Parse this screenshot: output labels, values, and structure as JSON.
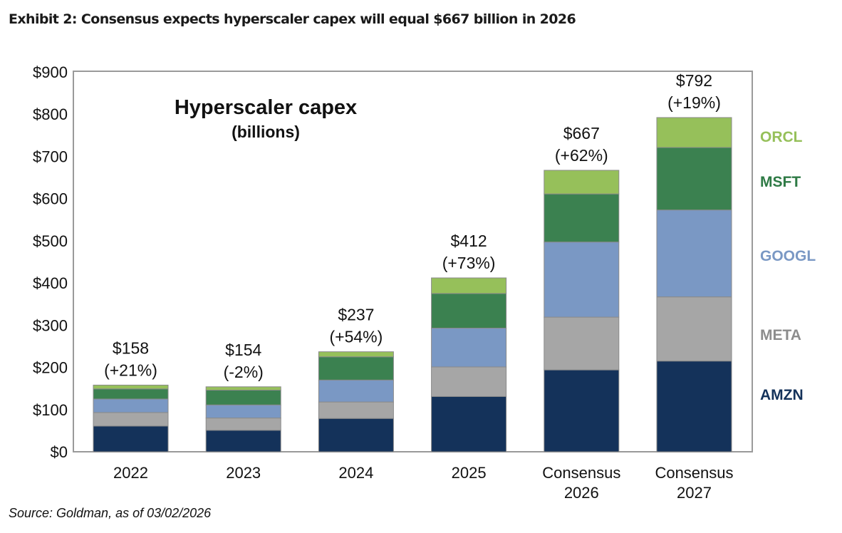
{
  "exhibit_title": "Exhibit 2: Consensus expects hyperscaler capex will equal $667 billion in 2026",
  "source": "Source: Goldman, as of 03/02/2026",
  "chart_data": {
    "type": "bar",
    "stacked": true,
    "title": "Hyperscaler capex",
    "subtitle": "(billions)",
    "xlabel": "",
    "ylabel": "",
    "ylim": [
      0,
      900
    ],
    "y_ticks": [
      0,
      100,
      200,
      300,
      400,
      500,
      600,
      700,
      800,
      900
    ],
    "y_tick_labels": [
      "$0",
      "$100",
      "$200",
      "$300",
      "$400",
      "$500",
      "$600",
      "$700",
      "$800",
      "$900"
    ],
    "grid": false,
    "legend_position": "right",
    "categories": [
      [
        "2022"
      ],
      [
        "2023"
      ],
      [
        "2024"
      ],
      [
        "2025"
      ],
      [
        "Consensus",
        "2026"
      ],
      [
        "Consensus",
        "2027"
      ]
    ],
    "series": [
      {
        "name": "AMZN",
        "color": "#14325a",
        "values": [
          61,
          51,
          79,
          131,
          194,
          215
        ]
      },
      {
        "name": "META",
        "color": "#a6a6a6",
        "values": [
          32,
          29,
          39,
          70,
          125,
          152
        ]
      },
      {
        "name": "GOOGL",
        "color": "#7a98c4",
        "values": [
          32,
          31,
          52,
          92,
          178,
          206
        ]
      },
      {
        "name": "MSFT",
        "color": "#3b8150",
        "values": [
          24,
          35,
          55,
          82,
          114,
          148
        ]
      },
      {
        "name": "ORCL",
        "color": "#96c05a",
        "values": [
          9,
          8,
          12,
          37,
          56,
          71
        ]
      }
    ],
    "totals": [
      158,
      154,
      237,
      412,
      667,
      792
    ],
    "total_labels": [
      "$158",
      "$154",
      "$237",
      "$412",
      "$667",
      "$792"
    ],
    "growth_labels": [
      "(+21%)",
      "(-2%)",
      "(+54%)",
      "(+73%)",
      "(+62%)",
      "(+19%)"
    ],
    "legend_text_colors": {
      "ORCL": "#96c05a",
      "MSFT": "#2e7a45",
      "GOOGL": "#7a98c4",
      "META": "#8c8c8c",
      "AMZN": "#14325a"
    }
  }
}
